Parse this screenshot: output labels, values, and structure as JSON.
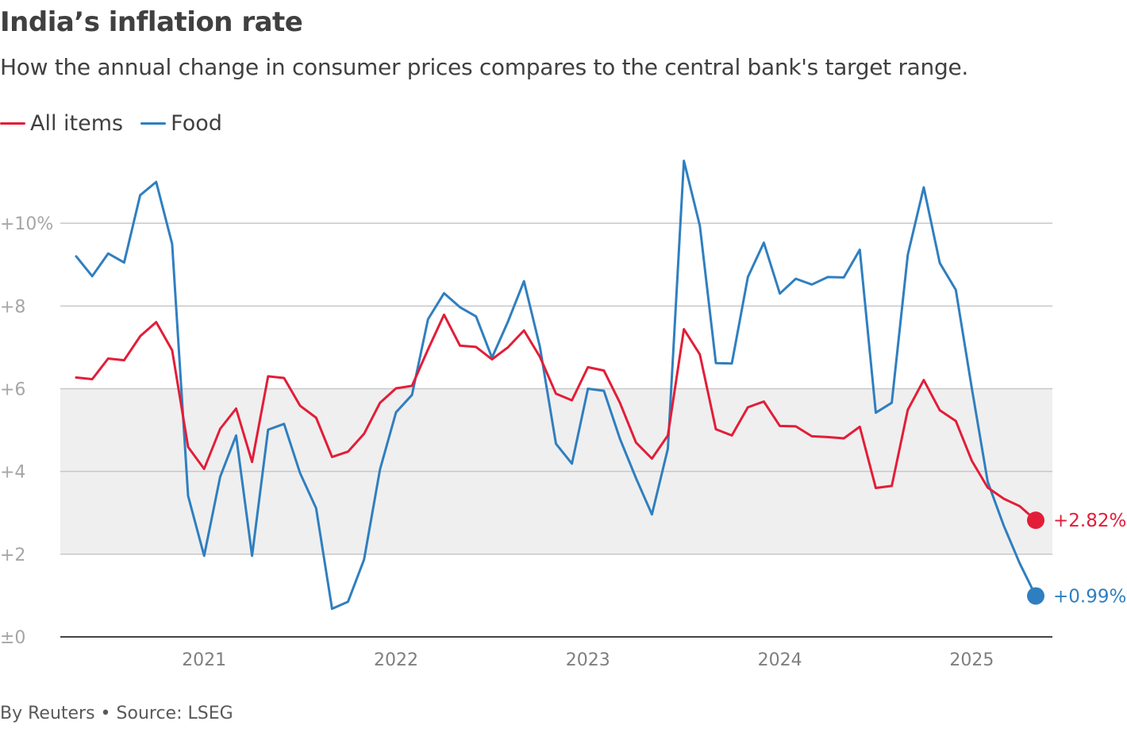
{
  "header": {
    "title": "India’s inflation rate",
    "subtitle": "How the annual change in consumer prices compares to the central bank's target range."
  },
  "footer": {
    "source": "By Reuters • Source: LSEG"
  },
  "colors": {
    "all_items": "#e31d38",
    "food": "#2f7fc0",
    "target_band": "#efefef",
    "gridline": "#c8c8c8",
    "axis": "#444444"
  },
  "chart_data": {
    "type": "line",
    "title": "India’s inflation rate",
    "subtitle": "How the annual change in consumer prices compares to the central bank's target range.",
    "ylim": [
      0,
      12
    ],
    "y_ticks": [
      0,
      2,
      4,
      6,
      8,
      10
    ],
    "y_tick_labels": [
      "±0",
      "+2",
      "+4",
      "+6",
      "+8",
      "+10%"
    ],
    "x_ticks": [
      "2021",
      "2022",
      "2023",
      "2024",
      "2025"
    ],
    "x_start": "2020-05",
    "target_band": [
      2,
      6
    ],
    "legend_position": "top-left",
    "grid": true,
    "series": [
      {
        "name": "All items",
        "color": "#e31d38",
        "end_label": "+2.82%",
        "values": [
          6.27,
          6.23,
          6.73,
          6.69,
          7.27,
          7.61,
          6.93,
          4.59,
          4.06,
          5.03,
          5.52,
          4.23,
          6.3,
          6.26,
          5.59,
          5.3,
          4.35,
          4.48,
          4.91,
          5.66,
          6.01,
          6.07,
          6.95,
          7.79,
          7.04,
          7.01,
          6.71,
          7.0,
          7.41,
          6.77,
          5.88,
          5.72,
          6.52,
          6.44,
          5.66,
          4.7,
          4.31,
          4.87,
          7.44,
          6.83,
          5.02,
          4.87,
          5.55,
          5.69,
          5.1,
          5.09,
          4.85,
          4.83,
          4.8,
          5.08,
          3.6,
          3.65,
          5.49,
          6.21,
          5.48,
          5.22,
          4.26,
          3.61,
          3.34,
          3.16,
          2.82
        ]
      },
      {
        "name": "Food",
        "color": "#2f7fc0",
        "end_label": "+0.99%",
        "values": [
          9.2,
          8.72,
          9.27,
          9.05,
          10.68,
          11.0,
          9.5,
          3.41,
          1.96,
          3.87,
          4.87,
          1.96,
          5.01,
          5.15,
          3.96,
          3.11,
          0.68,
          0.85,
          1.87,
          4.05,
          5.43,
          5.85,
          7.68,
          8.31,
          7.97,
          7.75,
          6.75,
          7.62,
          8.6,
          7.01,
          4.67,
          4.19,
          6.0,
          5.95,
          4.79,
          3.84,
          2.96,
          4.55,
          11.51,
          9.94,
          6.62,
          6.61,
          8.7,
          9.53,
          8.3,
          8.66,
          8.52,
          8.7,
          8.69,
          9.36,
          5.42,
          5.66,
          9.24,
          10.87,
          9.04,
          8.39,
          6.02,
          3.75,
          2.69,
          1.78,
          0.99
        ]
      }
    ]
  }
}
